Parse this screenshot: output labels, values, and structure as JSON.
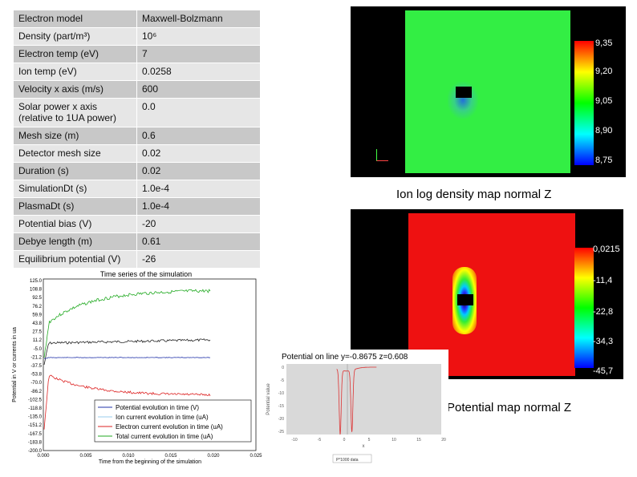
{
  "params": [
    {
      "k": "Electron model",
      "v": "Maxwell-Bolzmann"
    },
    {
      "k": "Density (part/m³)",
      "v": "10⁶"
    },
    {
      "k": "Electron temp (eV)",
      "v": "7"
    },
    {
      "k": "Ion temp (eV)",
      "v": "0.0258"
    },
    {
      "k": "Velocity x axis (m/s)",
      "v": "600"
    },
    {
      "k": "Solar power x axis (relative to 1UA power)",
      "v": "0.0"
    },
    {
      "k": "Mesh size (m)",
      "v": "0.6"
    },
    {
      "k": "Detector mesh size",
      "v": "0.02"
    },
    {
      "k": "Duration (s)",
      "v": "0.02"
    },
    {
      "k": "SimulationDt (s)",
      "v": "1.0e-4"
    },
    {
      "k": "PlasmaDt (s)",
      "v": "1.0e-4"
    },
    {
      "k": "Potential bias (V)",
      "v": "-20"
    },
    {
      "k": "Debye length (m)",
      "v": "0.61"
    },
    {
      "k": "Equilibrium potential (V)",
      "v": "-26"
    }
  ],
  "ion_map": {
    "caption": "Ion log density map normal Z",
    "scale_labels": [
      "9,35",
      "9,20",
      "9,05",
      "8,90",
      "8,75"
    ],
    "colors": {
      "field": "#33ee44",
      "object": "#000000"
    }
  },
  "potential_map": {
    "caption": "Potential map normal Z",
    "scale_labels": [
      "0,0215",
      "-11,4",
      "-22,8",
      "-34,3",
      "-45,7"
    ],
    "colors": {
      "field": "#ee1111",
      "object": "#000000"
    }
  },
  "time_series": {
    "title": "Time series of the simulation",
    "xlabel": "Time from the beginning of the simulation",
    "ylabel": "Potential in V or currents in ua",
    "x_ticks": [
      "0.000",
      "0.005",
      "0.010",
      "0.015",
      "0.020",
      "0.025"
    ],
    "y_ticks": [
      "125.0",
      "108.8",
      "92.5",
      "76.2",
      "59.9",
      "43.8",
      "27.5",
      "11.2",
      "-5.0",
      "-21.2",
      "-37.5",
      "-53.8",
      "-70.0",
      "-86.2",
      "-102.5",
      "-118.8",
      "-135.0",
      "-151.2",
      "-167.5",
      "-183.8",
      "-200.0"
    ],
    "legend": [
      {
        "label": "Potential evolution in time (V)",
        "color": "#2233aa"
      },
      {
        "label": "Ion current evolution in time (uA)",
        "color": "#99ccee"
      },
      {
        "label": "Electron current evolution in time (uA)",
        "color": "#dd2222"
      },
      {
        "label": "Total current evolution in time (uA)",
        "color": "#22aa22"
      }
    ]
  },
  "line_plot": {
    "title": "Potential on line y=-0.8675 z=0.608",
    "xlabel": "x",
    "ylabel": "Potential value",
    "x_ticks": [
      "-10",
      "-5",
      "0",
      "5",
      "10",
      "15",
      "20"
    ],
    "y_ticks": [
      "0",
      "-5",
      "-10",
      "-15",
      "-20",
      "-25"
    ],
    "legend": "P*1000 data"
  }
}
